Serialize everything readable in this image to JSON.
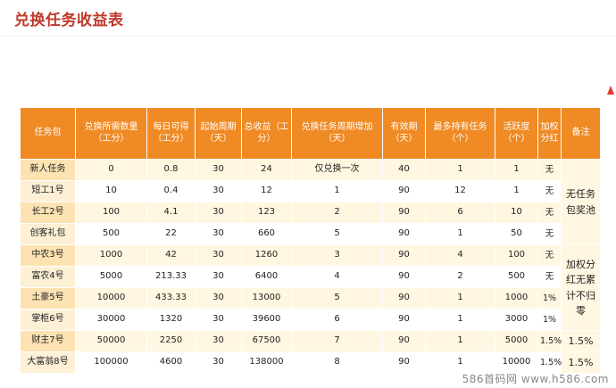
{
  "title": "兑换任务收益表",
  "colors": {
    "title": "#c0392b",
    "header": "#f08a24",
    "stripe": "#fff7e1",
    "name_col": "#fde2b2"
  },
  "table": {
    "headers": [
      "任务包",
      "兑换所需数量（工分）",
      "每日可得（工分）",
      "起始周期（天）",
      "总收益（工分）",
      "兑换任务周期增加（天）",
      "有效期（天）",
      "最多持有任务（个）",
      "活跃度（个）",
      "加权分红",
      "备注"
    ],
    "rows": [
      [
        "新人任务",
        "0",
        "0.8",
        "30",
        "24",
        "仅兑换一次",
        "40",
        "1",
        "1",
        "无"
      ],
      [
        "短工1号",
        "10",
        "0.4",
        "30",
        "12",
        "1",
        "90",
        "12",
        "1",
        "无"
      ],
      [
        "长工2号",
        "100",
        "4.1",
        "30",
        "123",
        "2",
        "90",
        "6",
        "10",
        "无"
      ],
      [
        "创客礼包",
        "500",
        "22",
        "30",
        "660",
        "5",
        "90",
        "1",
        "50",
        "无"
      ],
      [
        "中农3号",
        "1000",
        "42",
        "30",
        "1260",
        "3",
        "90",
        "4",
        "100",
        "无"
      ],
      [
        "富农4号",
        "5000",
        "213.33",
        "30",
        "6400",
        "4",
        "90",
        "2",
        "500",
        "无"
      ],
      [
        "土豪5号",
        "10000",
        "433.33",
        "30",
        "13000",
        "5",
        "90",
        "1",
        "1000",
        "1%"
      ],
      [
        "掌柜6号",
        "30000",
        "1320",
        "30",
        "39600",
        "6",
        "90",
        "1",
        "3000",
        "1%"
      ],
      [
        "财主7号",
        "50000",
        "2250",
        "30",
        "67500",
        "7",
        "90",
        "1",
        "5000",
        "1.5%"
      ],
      [
        "大富翁8号",
        "100000",
        "4600",
        "30",
        "138000",
        "8",
        "90",
        "1",
        "10000",
        "1.5%"
      ]
    ],
    "notes": {
      "block1": "无任务包奖池",
      "block2": "加权分红无累计不归零",
      "row9": "1.5%",
      "row10": "1.5%"
    }
  },
  "footer": "586首码网 www.h586.com"
}
